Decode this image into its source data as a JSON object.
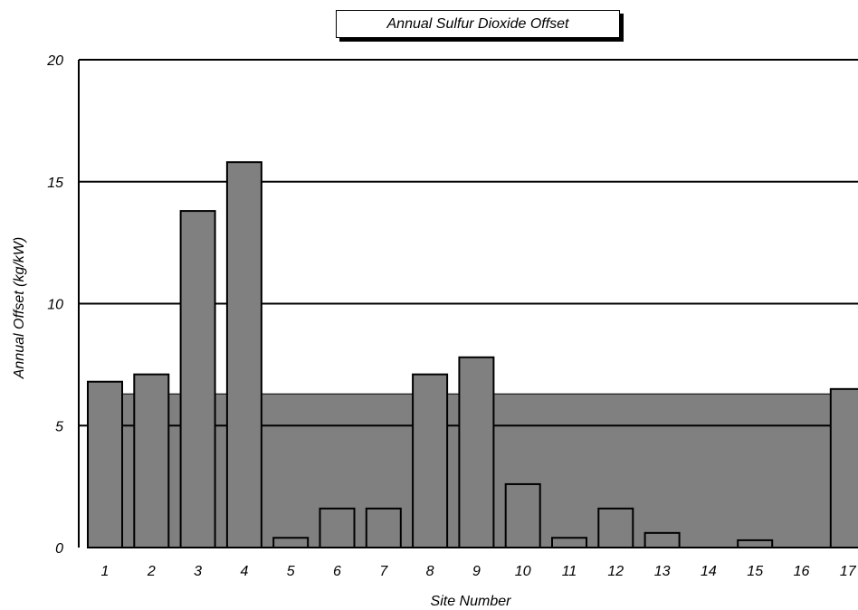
{
  "chart_data": {
    "type": "bar",
    "title": "Annual Sulfur Dioxide Offset",
    "xlabel": "Site  Number",
    "ylabel": "Annual Offset (kg/kW)",
    "categories": [
      "1",
      "2",
      "3",
      "4",
      "5",
      "6",
      "7",
      "8",
      "9",
      "10",
      "11",
      "12",
      "13",
      "14",
      "15",
      "16",
      "17"
    ],
    "values": [
      6.8,
      7.1,
      13.8,
      15.8,
      0.4,
      1.6,
      1.6,
      7.1,
      7.8,
      2.6,
      0.4,
      1.6,
      0.6,
      0,
      0.3,
      0,
      6.5
    ],
    "average": 6.3,
    "ylim": [
      0,
      20
    ],
    "yticks": [
      0,
      5,
      10,
      15,
      20
    ],
    "grid": true,
    "colors": {
      "bar": "#808080",
      "average_area": "#808080",
      "outline": "#000000"
    }
  }
}
